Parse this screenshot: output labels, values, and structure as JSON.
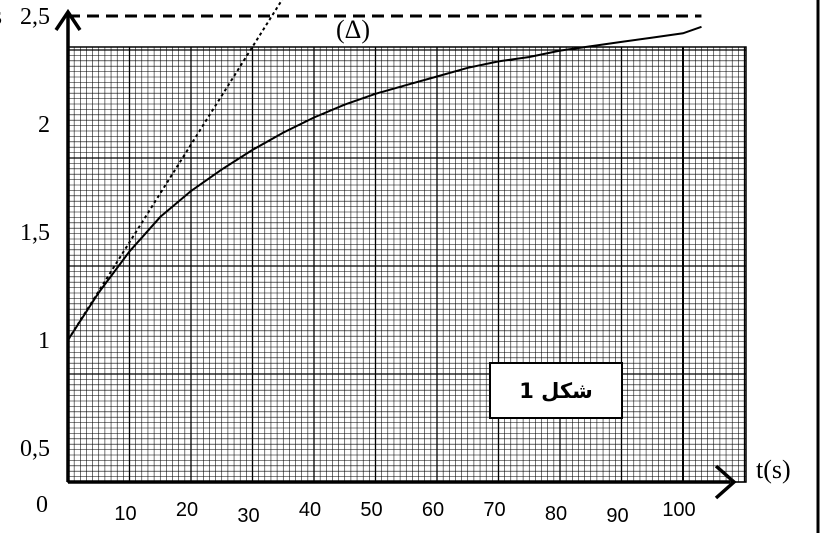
{
  "chart_data": {
    "type": "line",
    "title": "",
    "xlabel": "t(s)",
    "ylabel": "s",
    "xlim": [
      0,
      103
    ],
    "ylim": [
      0,
      3
    ],
    "x_ticks": [
      {
        "value": 10,
        "label": "10"
      },
      {
        "value": 20,
        "label": "20"
      },
      {
        "value": 30,
        "label": "30"
      },
      {
        "value": 40,
        "label": "40"
      },
      {
        "value": 50,
        "label": "50"
      },
      {
        "value": 60,
        "label": "60"
      },
      {
        "value": 70,
        "label": "70"
      },
      {
        "value": 80,
        "label": "80"
      },
      {
        "value": 90,
        "label": "90"
      },
      {
        "value": 100,
        "label": "100"
      }
    ],
    "y_ticks": [
      {
        "value": 0.5,
        "label": "0,5"
      },
      {
        "value": 1,
        "label": "1"
      },
      {
        "value": 1.5,
        "label": "1,5"
      },
      {
        "value": 2,
        "label": "2"
      },
      {
        "value": 2.5,
        "label": "2,5"
      }
    ],
    "origin_label": "0",
    "grid": true,
    "series": [
      {
        "style": "solid",
        "color": "#000000",
        "x": [
          0,
          5,
          10,
          15,
          20,
          25,
          30,
          35,
          40,
          45,
          50,
          55,
          60,
          65,
          70,
          75,
          80,
          85,
          90,
          95,
          100,
          103
        ],
        "y": [
          1.0,
          1.22,
          1.41,
          1.57,
          1.69,
          1.79,
          1.88,
          1.96,
          2.03,
          2.09,
          2.14,
          2.18,
          2.22,
          2.26,
          2.29,
          2.31,
          2.34,
          2.36,
          2.38,
          2.4,
          2.42,
          2.45
        ]
      },
      {
        "name": "(Δ)",
        "style": "dotted",
        "color": "#000000",
        "x": [
          0,
          44.2
        ],
        "y": [
          1.0,
          3.0
        ]
      },
      {
        "style": "dashed",
        "color": "#000000",
        "x": [
          0,
          103
        ],
        "y": [
          2.5,
          2.5
        ]
      }
    ],
    "annotations": [
      {
        "text": "شكل 1",
        "boxed": true,
        "position": "bottom-right"
      }
    ]
  }
}
